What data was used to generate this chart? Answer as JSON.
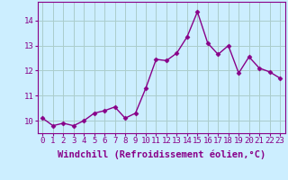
{
  "x": [
    0,
    1,
    2,
    3,
    4,
    5,
    6,
    7,
    8,
    9,
    10,
    11,
    12,
    13,
    14,
    15,
    16,
    17,
    18,
    19,
    20,
    21,
    22,
    23
  ],
  "y": [
    10.1,
    9.8,
    9.9,
    9.8,
    10.0,
    10.3,
    10.4,
    10.55,
    10.1,
    10.3,
    11.3,
    12.45,
    12.4,
    12.7,
    13.35,
    14.35,
    13.1,
    12.65,
    13.0,
    11.9,
    12.55,
    12.1,
    11.95,
    11.7
  ],
  "line_color": "#880088",
  "marker": "D",
  "marker_size": 2.5,
  "bg_color": "#cceeff",
  "grid_color": "#aacccc",
  "xlabel": "Windchill (Refroidissement éolien,°C)",
  "xlabel_fontsize": 7.5,
  "ylim": [
    9.5,
    14.75
  ],
  "xlim": [
    -0.5,
    23.5
  ],
  "yticks": [
    10,
    11,
    12,
    13,
    14
  ],
  "xticks": [
    0,
    1,
    2,
    3,
    4,
    5,
    6,
    7,
    8,
    9,
    10,
    11,
    12,
    13,
    14,
    15,
    16,
    17,
    18,
    19,
    20,
    21,
    22,
    23
  ],
  "tick_fontsize": 6.5,
  "line_width": 1.0,
  "title": ""
}
